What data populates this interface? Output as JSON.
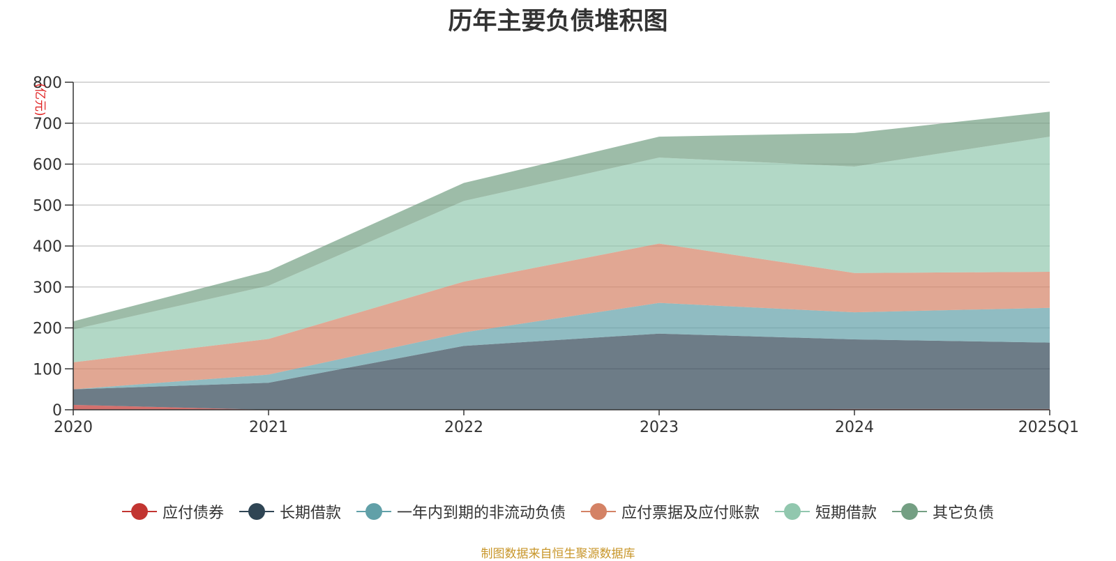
{
  "chart_data": {
    "type": "area",
    "stacked": true,
    "title": "历年主要负债堆积图",
    "ylabel": "(亿元)",
    "categories": [
      "2020",
      "2021",
      "2022",
      "2023",
      "2024",
      "2025Q1"
    ],
    "ylim": [
      0,
      800
    ],
    "yticks": [
      0,
      100,
      200,
      300,
      400,
      500,
      600,
      700,
      800
    ],
    "grid": true,
    "legend_position": "bottom",
    "series": [
      {
        "name": "应付债券",
        "color": "#c23531",
        "values": [
          12,
          0,
          0,
          0,
          2,
          2
        ]
      },
      {
        "name": "长期借款",
        "color": "#2f4554",
        "values": [
          38,
          66,
          156,
          186,
          170,
          162
        ]
      },
      {
        "name": "一年内到期的非流动负债",
        "color": "#61a0a8",
        "values": [
          0,
          20,
          33,
          75,
          66,
          85
        ]
      },
      {
        "name": "应付票据及应付账款",
        "color": "#d48265",
        "values": [
          66,
          87,
          124,
          145,
          96,
          88
        ]
      },
      {
        "name": "短期借款",
        "color": "#91c7ae",
        "values": [
          80,
          130,
          197,
          210,
          260,
          330
        ]
      },
      {
        "name": "其它负债",
        "color": "#749f83",
        "values": [
          20,
          36,
          44,
          51,
          82,
          61
        ]
      }
    ]
  },
  "source_note": "制图数据来自恒生聚源数据库"
}
